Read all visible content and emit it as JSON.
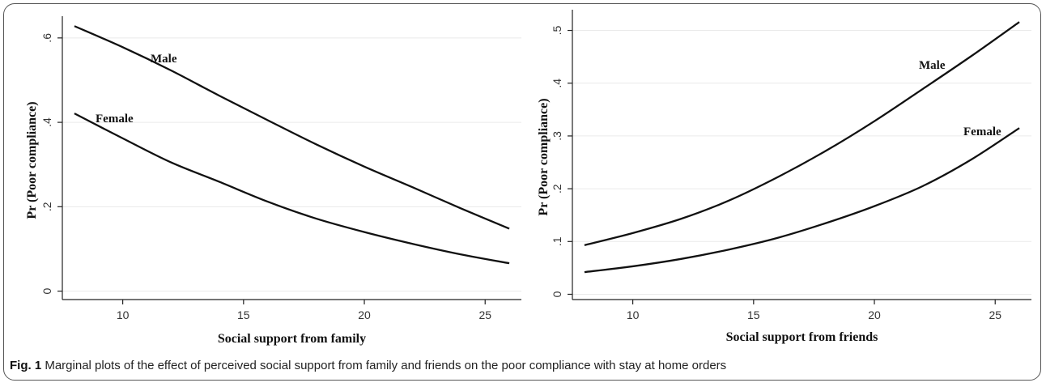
{
  "caption": {
    "label": "Fig. 1",
    "text": "Marginal plots of the effect of perceived social support from family and friends on the poor compliance with stay at home orders"
  },
  "chart_data": [
    {
      "type": "line",
      "title": "",
      "xlabel": "Social support from family",
      "ylabel": "Pr (Poor compliance)",
      "xlim": [
        7.5,
        26.5
      ],
      "ylim": [
        -0.02,
        0.64
      ],
      "xticks": [
        10,
        15,
        20,
        25
      ],
      "xtick_labels": [
        "10",
        "15",
        "20",
        "25"
      ],
      "yticks": [
        0,
        0.2,
        0.4,
        0.6
      ],
      "ytick_labels": [
        "0",
        ".2",
        ".4",
        ".6"
      ],
      "grid": "horizontal",
      "x": [
        8,
        10,
        12,
        14,
        16,
        18,
        20,
        22,
        24,
        26
      ],
      "series": [
        {
          "name": "Male",
          "values": [
            0.628,
            0.578,
            0.523,
            0.463,
            0.405,
            0.348,
            0.295,
            0.246,
            0.196,
            0.148
          ]
        },
        {
          "name": "Female",
          "values": [
            0.421,
            0.362,
            0.305,
            0.259,
            0.212,
            0.172,
            0.14,
            0.112,
            0.087,
            0.066
          ]
        }
      ]
    },
    {
      "type": "line",
      "title": "",
      "xlabel": "Social support from friends",
      "ylabel": "Pr (Poor compliance)",
      "xlim": [
        7.5,
        26.5
      ],
      "ylim": [
        -0.01,
        0.53
      ],
      "xticks": [
        10,
        15,
        20,
        25
      ],
      "xtick_labels": [
        "10",
        "15",
        "20",
        "25"
      ],
      "yticks": [
        0,
        0.1,
        0.2,
        0.3,
        0.4,
        0.5
      ],
      "ytick_labels": [
        "0",
        ".1",
        ".2",
        ".3",
        ".4",
        ".5"
      ],
      "grid": "horizontal",
      "x": [
        8,
        10,
        12,
        14,
        16,
        18,
        20,
        22,
        24,
        26
      ],
      "series": [
        {
          "name": "Male",
          "values": [
            0.093,
            0.116,
            0.143,
            0.178,
            0.222,
            0.272,
            0.328,
            0.389,
            0.451,
            0.516
          ]
        },
        {
          "name": "Female",
          "values": [
            0.042,
            0.053,
            0.067,
            0.085,
            0.107,
            0.135,
            0.167,
            0.205,
            0.255,
            0.315
          ]
        }
      ]
    }
  ]
}
